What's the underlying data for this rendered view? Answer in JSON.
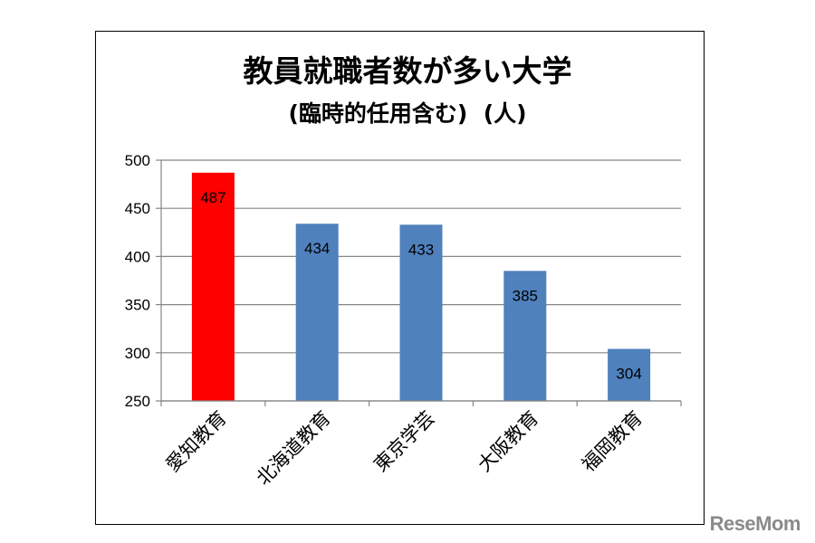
{
  "chart_data": {
    "type": "bar",
    "title": "教員就職者数が多い大学",
    "subtitle": "(臨時的任用含む)  (人)",
    "categories": [
      "愛知教育",
      "北海道教育",
      "東京学芸",
      "大阪教育",
      "福岡教育"
    ],
    "values": [
      487,
      434,
      433,
      385,
      304
    ],
    "data_labels": [
      "487",
      "434",
      "433",
      "385",
      "304"
    ],
    "ylim": [
      250,
      500
    ],
    "yticks": [
      "250",
      "300",
      "350",
      "400",
      "450",
      "500"
    ],
    "ytick_values": [
      250,
      300,
      350,
      400,
      450,
      500
    ],
    "xlabel": "",
    "ylabel": "",
    "grid": true,
    "colors": {
      "highlight": "#ff0000",
      "default": "#4f81bd",
      "grid": "#868686"
    },
    "highlight_index": 0
  },
  "watermark": "ReseMom"
}
